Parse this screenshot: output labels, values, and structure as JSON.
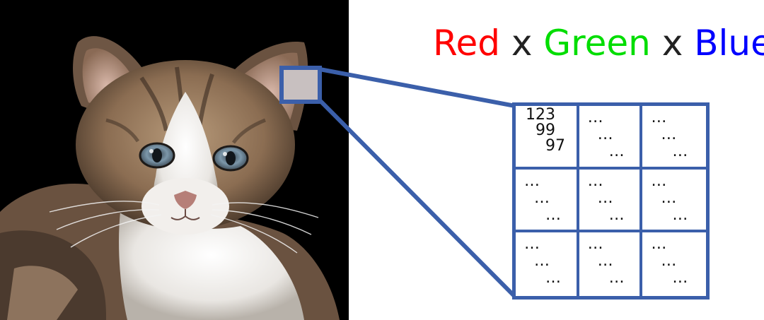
{
  "title": {
    "parts": [
      {
        "text": "Red",
        "color": "#ff0000"
      },
      {
        "text": " x ",
        "color": "#222222"
      },
      {
        "text": "Green",
        "color": "#00dd00"
      },
      {
        "text": " x ",
        "color": "#222222"
      },
      {
        "text": "Blue",
        "color": "#0000ff"
      }
    ]
  },
  "pixel_grid": {
    "cells": [
      [
        "123",
        "99",
        "97"
      ],
      [
        "…",
        "…",
        "…"
      ],
      [
        "…",
        "…",
        "…"
      ],
      [
        "…",
        "…",
        "…"
      ],
      [
        "…",
        "…",
        "…"
      ],
      [
        "…",
        "…",
        "…"
      ],
      [
        "…",
        "…",
        "…"
      ],
      [
        "…",
        "…",
        "…"
      ],
      [
        "…",
        "…",
        "…"
      ]
    ]
  },
  "colors": {
    "frame": "#3b5faa",
    "background_photo": "#000000",
    "selected_patch": "#c8c0c0"
  },
  "icons": [
    "kitten-photo",
    "zoom-connector"
  ]
}
